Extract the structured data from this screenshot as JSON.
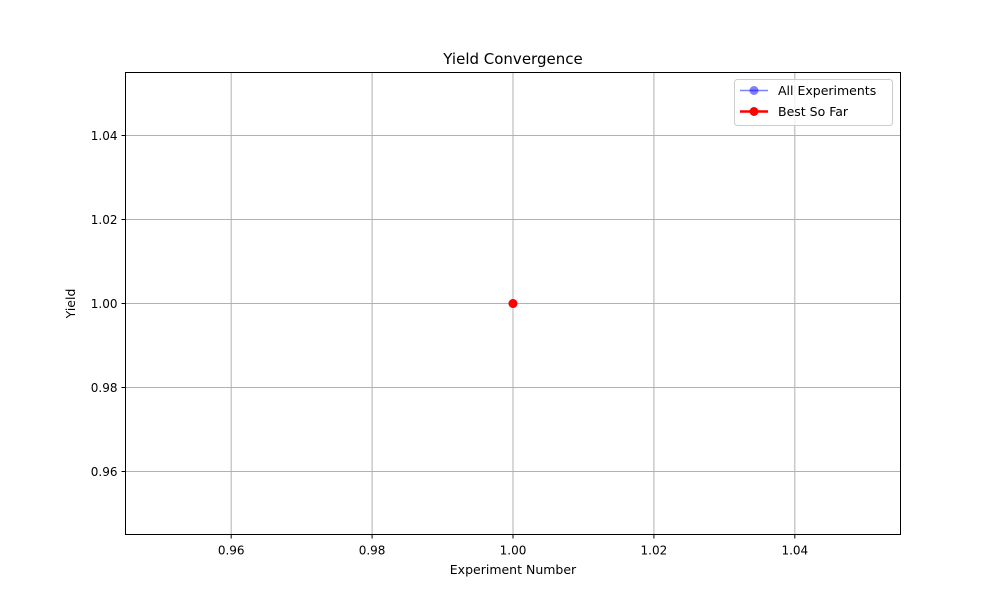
{
  "chart_data": {
    "type": "line",
    "title": "Yield Convergence",
    "xlabel": "Experiment Number",
    "ylabel": "Yield",
    "xlim": [
      0.945,
      1.055
    ],
    "ylim": [
      0.945,
      1.055
    ],
    "x_ticks": [
      0.96,
      0.98,
      1.0,
      1.02,
      1.04
    ],
    "y_ticks": [
      0.96,
      0.98,
      1.0,
      1.02,
      1.04
    ],
    "x_tick_labels": [
      "0.96",
      "0.98",
      "1.00",
      "1.02",
      "1.04"
    ],
    "y_tick_labels": [
      "0.96",
      "0.98",
      "1.00",
      "1.02",
      "1.04"
    ],
    "grid": true,
    "legend_position": "top-right",
    "series": [
      {
        "name": "All Experiments",
        "x": [
          1
        ],
        "y": [
          1
        ],
        "color": "#0000ff",
        "alpha": 0.5,
        "marker": "circle",
        "line": "solid"
      },
      {
        "name": "Best So Far",
        "x": [
          1
        ],
        "y": [
          1
        ],
        "color": "#ff0000",
        "alpha": 1.0,
        "marker": "circle",
        "line": "solid"
      }
    ]
  }
}
